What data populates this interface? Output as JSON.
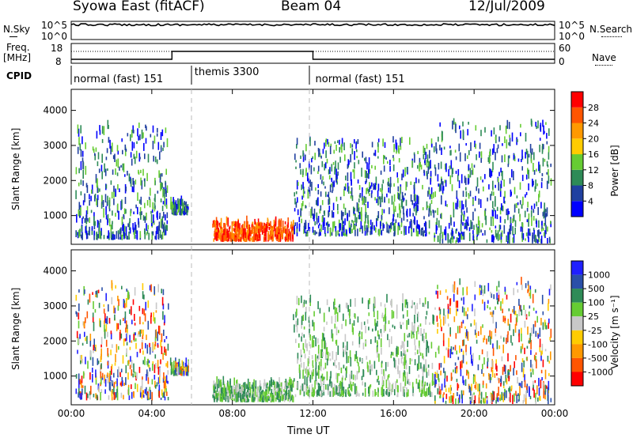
{
  "header": {
    "station": "Syowa East (fitACF)",
    "beam": "Beam 04",
    "date": "12/Jul/2009"
  },
  "top_panels": {
    "nsky_label": "N.Sky",
    "nsearch_label": "N.Search",
    "noise_ticks": [
      "10^5",
      "10^0"
    ],
    "freq_label": "Freq.",
    "freq_unit": "[MHz]",
    "freq_ticks": [
      "18",
      "8"
    ],
    "nave_label": "Nave",
    "nave_ticks": [
      "60",
      "0"
    ],
    "cpid_label": "CPID"
  },
  "cpid_segments": [
    {
      "label": "normal (fast) 151",
      "start_hour": 0,
      "end_hour": 6
    },
    {
      "label": "themis 3300",
      "start_hour": 6,
      "end_hour": 12
    },
    {
      "label": "normal (fast) 151",
      "start_hour": 12,
      "end_hour": 24
    }
  ],
  "time_axis": {
    "title": "Time UT",
    "ticks": [
      "00:00",
      "04:00",
      "08:00",
      "12:00",
      "16:00",
      "20:00",
      "00:00"
    ],
    "tick_hours": [
      0,
      4,
      8,
      12,
      16,
      20,
      24
    ]
  },
  "frequency_trace": [
    {
      "from_hour": 0,
      "to_hour": 5,
      "mhz": 10
    },
    {
      "from_hour": 5,
      "to_hour": 12,
      "mhz": 14
    },
    {
      "from_hour": 12,
      "to_hour": 18,
      "mhz": 10
    },
    {
      "from_hour": 18,
      "to_hour": 24,
      "mhz": 10
    }
  ],
  "chart_data": [
    {
      "type": "heatmap",
      "ylabel": "Slant Range [km]",
      "yticks": [
        1000,
        2000,
        3000,
        4000
      ],
      "ylim": [
        180,
        4600
      ],
      "xlim": [
        0,
        24
      ],
      "colorbar": {
        "title": "Power [dB]",
        "ticks": [
          "4",
          "8",
          "12",
          "16",
          "20",
          "24",
          "28"
        ],
        "colors": [
          "#0000ff",
          "#2040a0",
          "#2e8b57",
          "#66cc33",
          "#ffcc00",
          "#ff9900",
          "#ff5500",
          "#ff0000"
        ]
      },
      "regions": [
        {
          "hours": [
            0.2,
            4.8
          ],
          "range_km": [
            300,
            3500
          ],
          "level": "low"
        },
        {
          "hours": [
            4.9,
            5.8
          ],
          "range_km": [
            1000,
            1300
          ],
          "level": "low"
        },
        {
          "hours": [
            7.0,
            11.0
          ],
          "range_km": [
            250,
            750
          ],
          "level": "high"
        },
        {
          "hours": [
            11.0,
            18.0
          ],
          "range_km": [
            400,
            3100
          ],
          "level": "low"
        },
        {
          "hours": [
            18.0,
            23.8
          ],
          "range_km": [
            200,
            3600
          ],
          "level": "low"
        }
      ]
    },
    {
      "type": "heatmap",
      "ylabel": "Slant Range [km]",
      "yticks": [
        1000,
        2000,
        3000,
        4000
      ],
      "ylim": [
        180,
        4600
      ],
      "xlim": [
        0,
        24
      ],
      "colorbar": {
        "title": "Velocity [m s⁻¹]",
        "ticks": [
          "1000",
          "500",
          "100",
          "25",
          "-25",
          "-100",
          "-500",
          "-1000"
        ],
        "colors": [
          "#2020ff",
          "#2a4fa8",
          "#2e8b57",
          "#66cc33",
          "#c8c8c8",
          "#ffcc00",
          "#ff9900",
          "#ff5500",
          "#ff0000"
        ]
      },
      "regions": [
        {
          "hours": [
            0.2,
            4.8
          ],
          "range_km": [
            300,
            3500
          ],
          "level": "mixed"
        },
        {
          "hours": [
            4.9,
            5.8
          ],
          "range_km": [
            1000,
            1300
          ],
          "level": "mixed"
        },
        {
          "hours": [
            7.0,
            11.0
          ],
          "range_km": [
            250,
            750
          ],
          "level": "positive"
        },
        {
          "hours": [
            11.0,
            18.0
          ],
          "range_km": [
            400,
            3100
          ],
          "level": "positive"
        },
        {
          "hours": [
            18.0,
            23.8
          ],
          "range_km": [
            200,
            3600
          ],
          "level": "mixed"
        }
      ]
    }
  ]
}
